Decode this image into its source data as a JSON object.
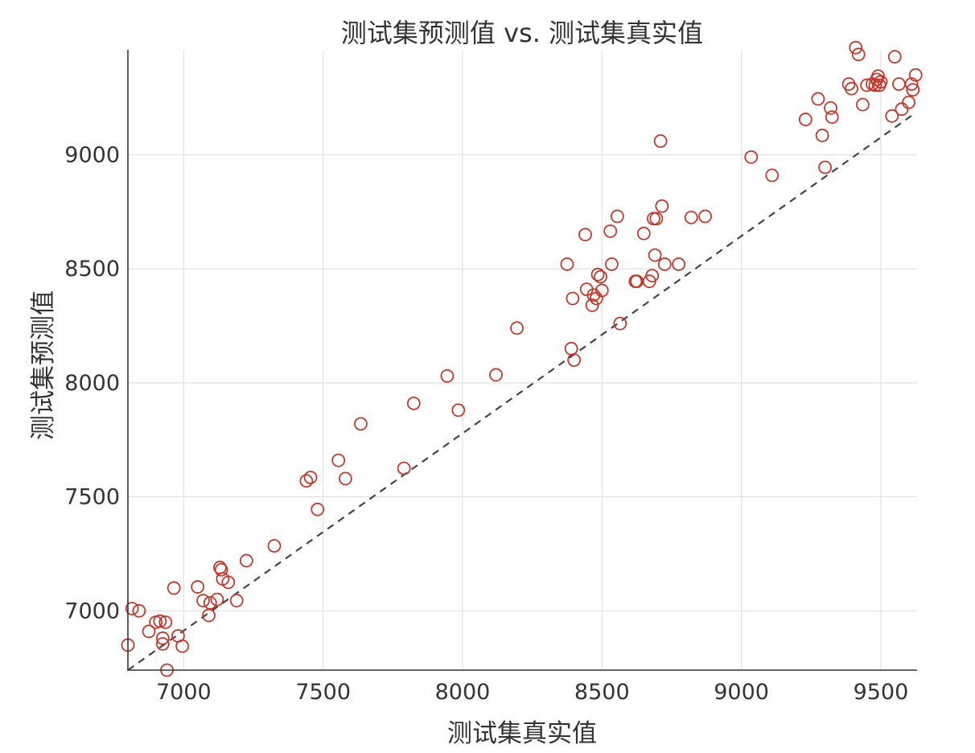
{
  "chart_data": {
    "type": "scatter",
    "title": "测试集预测值 vs. 测试集真实值",
    "xlabel": "测试集真实值",
    "ylabel": "测试集预测值",
    "xlim": [
      6800,
      9630
    ],
    "ylim": [
      6740,
      9460
    ],
    "xticks": [
      7000,
      7500,
      8000,
      8500,
      9000,
      9500
    ],
    "yticks": [
      7000,
      7500,
      8000,
      8500,
      9000
    ],
    "grid": true,
    "marker": "circle-open",
    "point_color": "#c0392b",
    "reference_line": {
      "style": "dashed",
      "color": "#444444",
      "x": [
        6800,
        9620
      ],
      "y": [
        6740,
        9180
      ]
    },
    "points": [
      {
        "x": 6800,
        "y": 6850
      },
      {
        "x": 6815,
        "y": 7010
      },
      {
        "x": 6840,
        "y": 7000
      },
      {
        "x": 6875,
        "y": 6910
      },
      {
        "x": 6900,
        "y": 6950
      },
      {
        "x": 6915,
        "y": 6955
      },
      {
        "x": 6925,
        "y": 6880
      },
      {
        "x": 6925,
        "y": 6855
      },
      {
        "x": 6935,
        "y": 6950
      },
      {
        "x": 6940,
        "y": 6740
      },
      {
        "x": 6965,
        "y": 7100
      },
      {
        "x": 6980,
        "y": 6890
      },
      {
        "x": 6995,
        "y": 6845
      },
      {
        "x": 7050,
        "y": 7105
      },
      {
        "x": 7070,
        "y": 7045
      },
      {
        "x": 7090,
        "y": 6980
      },
      {
        "x": 7095,
        "y": 7035
      },
      {
        "x": 7120,
        "y": 7050
      },
      {
        "x": 7130,
        "y": 7190
      },
      {
        "x": 7135,
        "y": 7180
      },
      {
        "x": 7140,
        "y": 7140
      },
      {
        "x": 7160,
        "y": 7125
      },
      {
        "x": 7190,
        "y": 7045
      },
      {
        "x": 7225,
        "y": 7220
      },
      {
        "x": 7325,
        "y": 7285
      },
      {
        "x": 7440,
        "y": 7570
      },
      {
        "x": 7455,
        "y": 7585
      },
      {
        "x": 7480,
        "y": 7445
      },
      {
        "x": 7555,
        "y": 7660
      },
      {
        "x": 7580,
        "y": 7580
      },
      {
        "x": 7635,
        "y": 7820
      },
      {
        "x": 7790,
        "y": 7625
      },
      {
        "x": 7825,
        "y": 7910
      },
      {
        "x": 7945,
        "y": 8030
      },
      {
        "x": 7985,
        "y": 7880
      },
      {
        "x": 8120,
        "y": 8035
      },
      {
        "x": 8195,
        "y": 8240
      },
      {
        "x": 8375,
        "y": 8520
      },
      {
        "x": 8390,
        "y": 8150
      },
      {
        "x": 8395,
        "y": 8370
      },
      {
        "x": 8400,
        "y": 8100
      },
      {
        "x": 8440,
        "y": 8650
      },
      {
        "x": 8445,
        "y": 8410
      },
      {
        "x": 8465,
        "y": 8340
      },
      {
        "x": 8470,
        "y": 8385
      },
      {
        "x": 8480,
        "y": 8370
      },
      {
        "x": 8485,
        "y": 8475
      },
      {
        "x": 8495,
        "y": 8465
      },
      {
        "x": 8500,
        "y": 8405
      },
      {
        "x": 8530,
        "y": 8665
      },
      {
        "x": 8535,
        "y": 8520
      },
      {
        "x": 8555,
        "y": 8730
      },
      {
        "x": 8565,
        "y": 8260
      },
      {
        "x": 8620,
        "y": 8445
      },
      {
        "x": 8625,
        "y": 8445
      },
      {
        "x": 8650,
        "y": 8655
      },
      {
        "x": 8670,
        "y": 8445
      },
      {
        "x": 8680,
        "y": 8470
      },
      {
        "x": 8685,
        "y": 8720
      },
      {
        "x": 8690,
        "y": 8560
      },
      {
        "x": 8695,
        "y": 8720
      },
      {
        "x": 8710,
        "y": 9060
      },
      {
        "x": 8715,
        "y": 8775
      },
      {
        "x": 8725,
        "y": 8520
      },
      {
        "x": 8775,
        "y": 8520
      },
      {
        "x": 8820,
        "y": 8725
      },
      {
        "x": 8870,
        "y": 8730
      },
      {
        "x": 9035,
        "y": 8990
      },
      {
        "x": 9110,
        "y": 8910
      },
      {
        "x": 9230,
        "y": 9155
      },
      {
        "x": 9275,
        "y": 9245
      },
      {
        "x": 9290,
        "y": 9085
      },
      {
        "x": 9300,
        "y": 8945
      },
      {
        "x": 9320,
        "y": 9205
      },
      {
        "x": 9325,
        "y": 9165
      },
      {
        "x": 9385,
        "y": 9310
      },
      {
        "x": 9395,
        "y": 9290
      },
      {
        "x": 9410,
        "y": 9470
      },
      {
        "x": 9420,
        "y": 9440
      },
      {
        "x": 9435,
        "y": 9220
      },
      {
        "x": 9450,
        "y": 9305
      },
      {
        "x": 9470,
        "y": 9310
      },
      {
        "x": 9480,
        "y": 9305
      },
      {
        "x": 9485,
        "y": 9330
      },
      {
        "x": 9490,
        "y": 9345
      },
      {
        "x": 9495,
        "y": 9305
      },
      {
        "x": 9500,
        "y": 9320
      },
      {
        "x": 9540,
        "y": 9170
      },
      {
        "x": 9550,
        "y": 9430
      },
      {
        "x": 9565,
        "y": 9310
      },
      {
        "x": 9575,
        "y": 9200
      },
      {
        "x": 9600,
        "y": 9230
      },
      {
        "x": 9610,
        "y": 9310
      },
      {
        "x": 9615,
        "y": 9285
      },
      {
        "x": 9625,
        "y": 9350
      }
    ]
  }
}
